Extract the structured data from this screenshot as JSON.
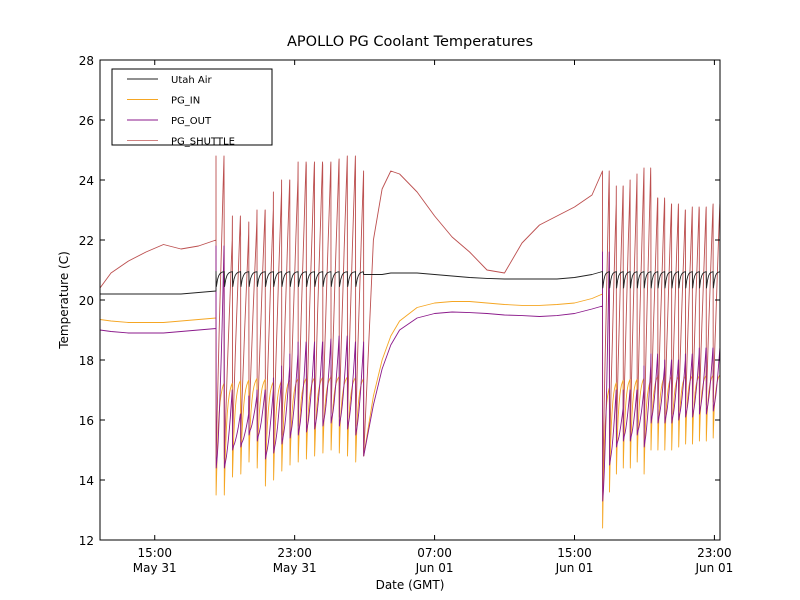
{
  "chart_data": {
    "type": "line",
    "title": "APOLLO PG Coolant Temperatures",
    "xlabel": "Date (GMT)",
    "ylabel": "Temperature (C)",
    "x_units": "hours since May 31 00:00 GMT",
    "xlim": [
      11.87,
      47.32
    ],
    "ylim": [
      12,
      28
    ],
    "grid": false,
    "legend_position": "top-left",
    "x_ticks": [
      {
        "value": 15,
        "label_time": "15:00",
        "label_date": "May 31"
      },
      {
        "value": 23,
        "label_time": "23:00",
        "label_date": "May 31"
      },
      {
        "value": 31,
        "label_time": "07:00",
        "label_date": "Jun 01"
      },
      {
        "value": 39,
        "label_time": "15:00",
        "label_date": "Jun 01"
      },
      {
        "value": 47,
        "label_time": "23:00",
        "label_date": "Jun 01"
      }
    ],
    "y_ticks": [
      12,
      14,
      16,
      18,
      20,
      22,
      24,
      26,
      28
    ],
    "series": [
      {
        "name": "Utah Air",
        "color": "#222222"
      },
      {
        "name": "PG_IN",
        "color": "#f5a623"
      },
      {
        "name": "PG_OUT",
        "color": "#8b1a8b"
      },
      {
        "name": "PG_SHUTTLE",
        "color": "#b03030"
      }
    ],
    "segments": {
      "pre_cycle": {
        "x": [
          11.87,
          12.5,
          13.5,
          14.5,
          15.5,
          16.5,
          17.5,
          18.5,
          19.5,
          20.5,
          21.5,
          22.0,
          23.0,
          24.0,
          25.0,
          26.0,
          27.0,
          28.0,
          29.0,
          30.0,
          30.95
        ],
        "utah_air": [
          20.2,
          20.2,
          20.2,
          20.2,
          20.2,
          20.2,
          20.25,
          20.3,
          20.4,
          20.5,
          20.6,
          20.65,
          20.7,
          20.75,
          20.8,
          20.85,
          20.9,
          20.95,
          21.0,
          21.0,
          21.0
        ],
        "pg_in": [
          19.35,
          19.3,
          19.25,
          19.25,
          19.25,
          19.3,
          19.35,
          19.4,
          19.5,
          19.6,
          19.7,
          19.75,
          19.85,
          19.9,
          20.0,
          20.05,
          20.1,
          20.15,
          20.2,
          20.2,
          20.2
        ],
        "pg_out": [
          19.0,
          18.95,
          18.9,
          18.9,
          18.9,
          18.95,
          19.0,
          19.05,
          19.15,
          19.25,
          19.35,
          19.4,
          19.5,
          19.55,
          19.6,
          19.65,
          19.7,
          19.75,
          19.8,
          19.8,
          19.8
        ],
        "pg_shuttle": [
          20.4,
          20.9,
          21.3,
          21.6,
          21.85,
          21.7,
          21.8,
          22.0,
          22.3,
          22.6,
          22.9,
          23.0,
          23.5,
          24.0,
          24.4,
          24.8,
          24.8,
          24.8,
          24.8,
          24.8,
          24.8
        ]
      },
      "cycle_block_1": {
        "start_hour": 18.5,
        "end_hour": 26.95,
        "shuttle_peaks": [
          24.8,
          22.0,
          22.8,
          22.2,
          22.6,
          23.0,
          23.0,
          23.6,
          24.0,
          24.0,
          24.6,
          24.5,
          24.6,
          24.5,
          24.6,
          24.7,
          24.8,
          24.3
        ],
        "pg_in_troughs": [
          13.5,
          13.5,
          14.1,
          14.2,
          14.6,
          14.4,
          13.8,
          14.0,
          14.3,
          14.5,
          14.6,
          14.7,
          14.8,
          14.9,
          15.0,
          14.9,
          14.8,
          14.6
        ],
        "pg_out_peaks": [
          21.8,
          17.0,
          16.2,
          16.2,
          16.8,
          17.0,
          17.0,
          17.4,
          17.8,
          18.2,
          18.6,
          18.5,
          18.6,
          18.6,
          18.7,
          18.8,
          18.6,
          18.6
        ],
        "utah_air_band": [
          20.45,
          20.95
        ]
      },
      "quiet": {
        "x": [
          26.95,
          27.5,
          28.0,
          28.5,
          29.0,
          30.0,
          31.0,
          32.0,
          33.0,
          34.0,
          35.0,
          36.0,
          37.0,
          38.0,
          39.0,
          40.0,
          40.6
        ],
        "utah_air": [
          20.85,
          20.85,
          20.85,
          20.9,
          20.9,
          20.9,
          20.85,
          20.8,
          20.75,
          20.72,
          20.7,
          20.7,
          20.7,
          20.7,
          20.75,
          20.85,
          20.95
        ],
        "pg_in": [
          14.8,
          16.8,
          18.0,
          18.8,
          19.3,
          19.75,
          19.9,
          19.95,
          19.95,
          19.9,
          19.85,
          19.82,
          19.82,
          19.85,
          19.9,
          20.05,
          20.2
        ],
        "pg_out": [
          14.8,
          16.5,
          17.7,
          18.5,
          19.0,
          19.4,
          19.55,
          19.6,
          19.58,
          19.55,
          19.5,
          19.48,
          19.45,
          19.48,
          19.55,
          19.7,
          19.8
        ],
        "pg_shuttle": [
          14.8,
          22.0,
          23.7,
          24.3,
          24.2,
          23.6,
          22.8,
          22.1,
          21.6,
          21.0,
          20.9,
          21.9,
          22.5,
          22.8,
          23.1,
          23.5,
          24.3
        ]
      },
      "cycle_block_2": {
        "start_hour": 40.6,
        "end_hour": 47.32,
        "shuttle_peaks": [
          24.3,
          23.2,
          23.8,
          23.8,
          24.0,
          24.2,
          24.4,
          23.4,
          23.4,
          23.2,
          23.2,
          23.0,
          23.0,
          23.1,
          23.0,
          23.1,
          23.2
        ],
        "pg_in_troughs": [
          12.4,
          13.6,
          14.2,
          14.4,
          14.4,
          14.6,
          14.2,
          15.0,
          15.0,
          15.0,
          15.0,
          15.1,
          15.2,
          15.2,
          15.3,
          15.3,
          15.4
        ],
        "pg_out_peaks": [
          21.6,
          17.0,
          16.4,
          17.0,
          17.0,
          17.0,
          17.8,
          18.2,
          17.8,
          18.0,
          18.0,
          18.0,
          18.2,
          18.2,
          18.4,
          18.4,
          18.4
        ],
        "utah_air_band": [
          20.4,
          20.95
        ]
      }
    }
  }
}
